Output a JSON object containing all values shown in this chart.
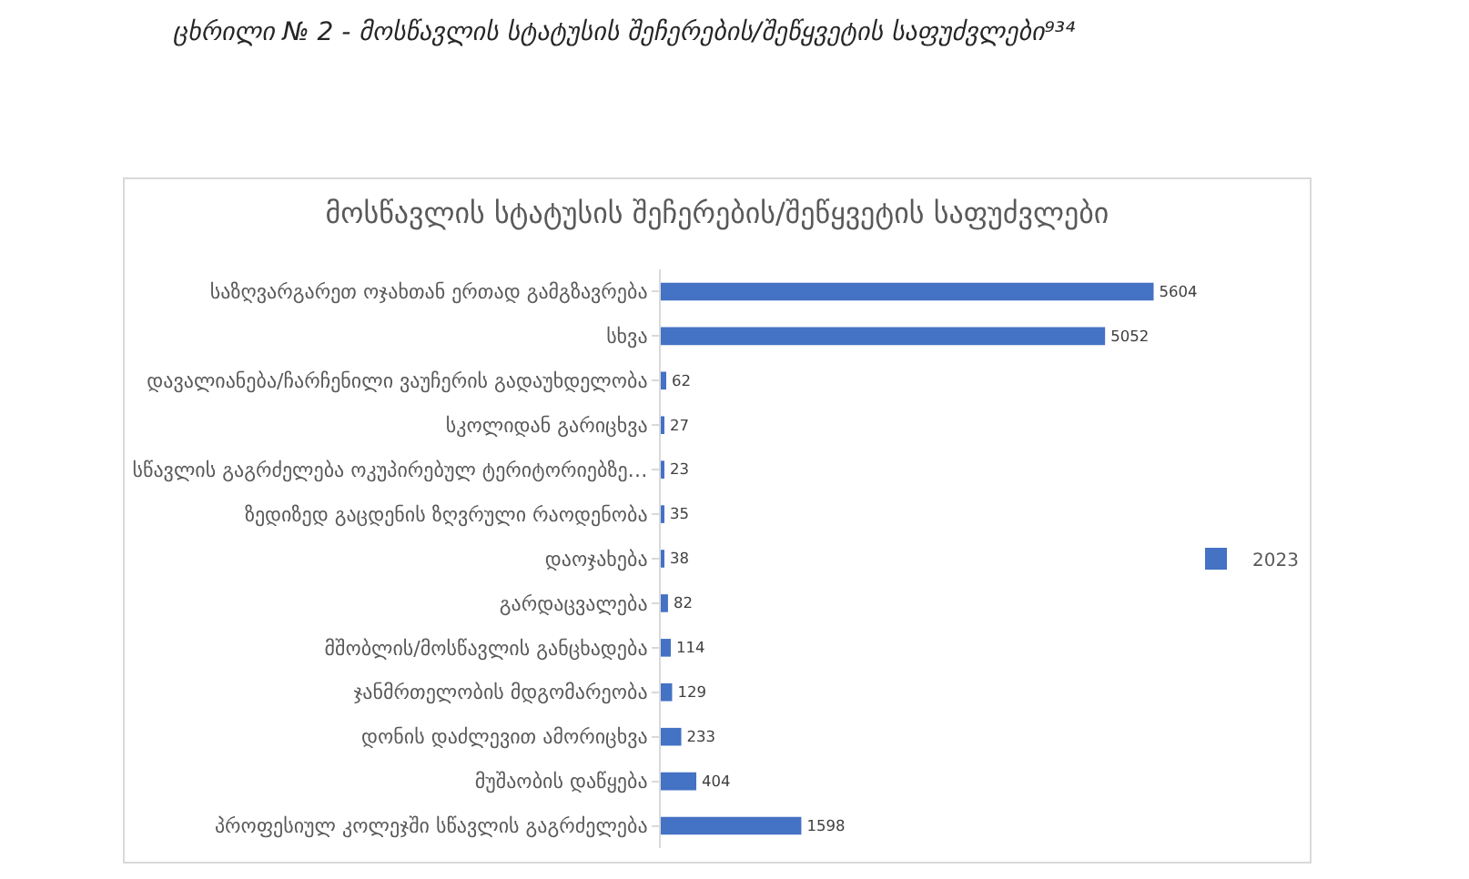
{
  "chart_data": {
    "type": "bar",
    "orientation": "horizontal",
    "title": "მოსწავლის სტატუსის შეჩერების/შეწყვეტის საფუძვლები",
    "annotations": [
      "ცხრილი № 2 - მოსწავლის სტატუსის შეჩერების/შეწყვეტის საფუძვლები⁹³⁴"
    ],
    "categories": [
      "საზღვარგარეთ ოჯახთან ერთად გამგზავრება",
      "სხვა",
      "დავალიანება/ჩარჩენილი ვაუჩერის გადაუხდელობა",
      "სკოლიდან გარიცხვა",
      "სწავლის გაგრძელება ოკუპირებულ ტერიტორიებზე…",
      "ზედიზედ გაცდენის ზღვრული რაოდენობა",
      "დაოჯახება",
      "გარდაცვალება",
      "მშობლის/მოსწავლის განცხადება",
      "ჯანმრთელობის მდგომარეობა",
      "დონის დაძლევით ამორიცხვა",
      "მუშაობის დაწყება",
      "პროფესიულ კოლეჯში სწავლის გაგრძელება"
    ],
    "series": [
      {
        "name": "2023",
        "color": "#4472c4",
        "values": [
          5604,
          5052,
          62,
          27,
          23,
          35,
          38,
          82,
          114,
          129,
          233,
          404,
          1598
        ]
      }
    ],
    "data_labels": true,
    "tick_labels": "y",
    "legend": "right"
  }
}
